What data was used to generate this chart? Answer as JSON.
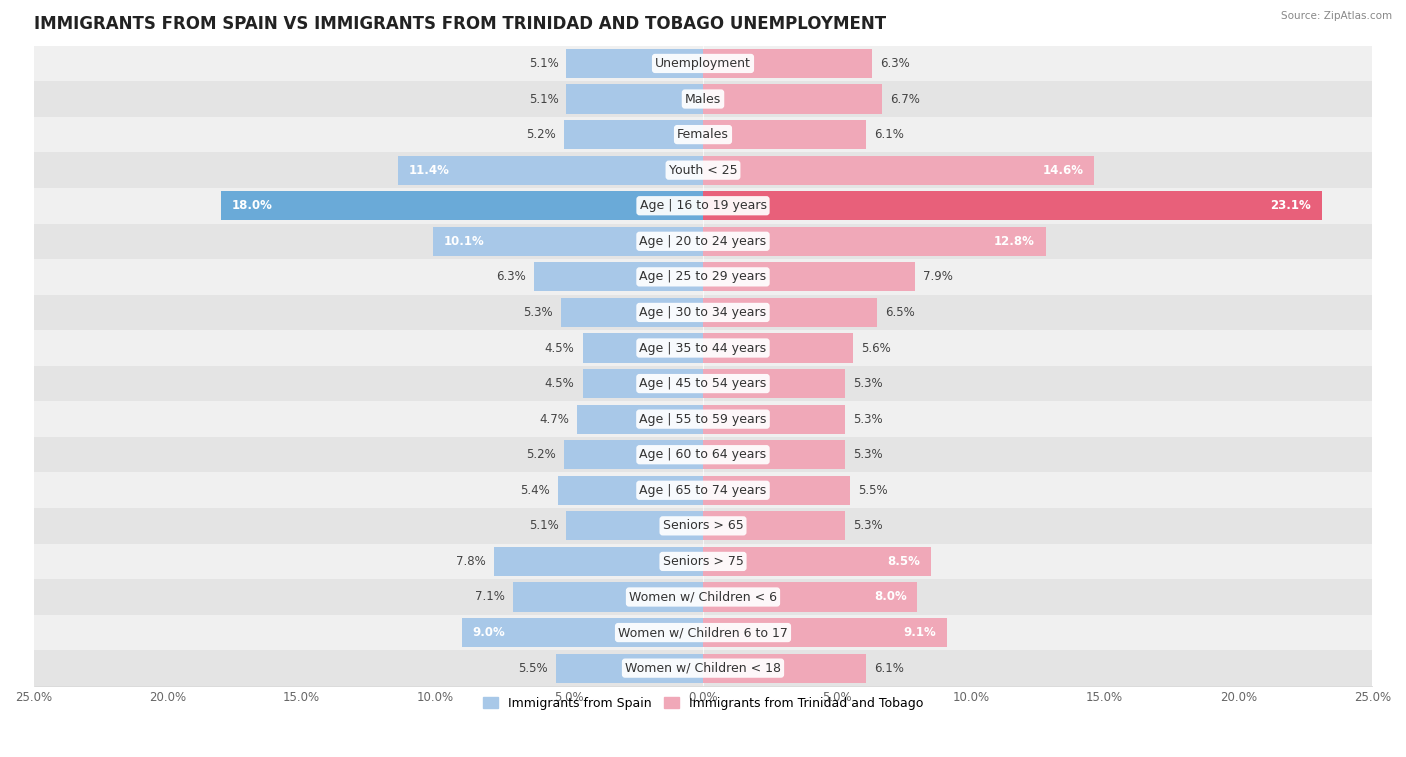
{
  "title": "IMMIGRANTS FROM SPAIN VS IMMIGRANTS FROM TRINIDAD AND TOBAGO UNEMPLOYMENT",
  "source": "Source: ZipAtlas.com",
  "categories": [
    "Unemployment",
    "Males",
    "Females",
    "Youth < 25",
    "Age | 16 to 19 years",
    "Age | 20 to 24 years",
    "Age | 25 to 29 years",
    "Age | 30 to 34 years",
    "Age | 35 to 44 years",
    "Age | 45 to 54 years",
    "Age | 55 to 59 years",
    "Age | 60 to 64 years",
    "Age | 65 to 74 years",
    "Seniors > 65",
    "Seniors > 75",
    "Women w/ Children < 6",
    "Women w/ Children 6 to 17",
    "Women w/ Children < 18"
  ],
  "spain_values": [
    5.1,
    5.1,
    5.2,
    11.4,
    18.0,
    10.1,
    6.3,
    5.3,
    4.5,
    4.5,
    4.7,
    5.2,
    5.4,
    5.1,
    7.8,
    7.1,
    9.0,
    5.5
  ],
  "tt_values": [
    6.3,
    6.7,
    6.1,
    14.6,
    23.1,
    12.8,
    7.9,
    6.5,
    5.6,
    5.3,
    5.3,
    5.3,
    5.5,
    5.3,
    8.5,
    8.0,
    9.1,
    6.1
  ],
  "spain_color": "#a8c8e8",
  "tt_color": "#f0a8b8",
  "spain_highlight_color": "#6aaad8",
  "tt_highlight_color": "#e8607a",
  "row_bg_odd": "#f0f0f0",
  "row_bg_even": "#e4e4e4",
  "xlim": 25.0,
  "legend_spain": "Immigrants from Spain",
  "legend_tt": "Immigrants from Trinidad and Tobago",
  "title_fontsize": 12,
  "label_fontsize": 9,
  "value_fontsize": 8.5,
  "bar_height": 0.82
}
